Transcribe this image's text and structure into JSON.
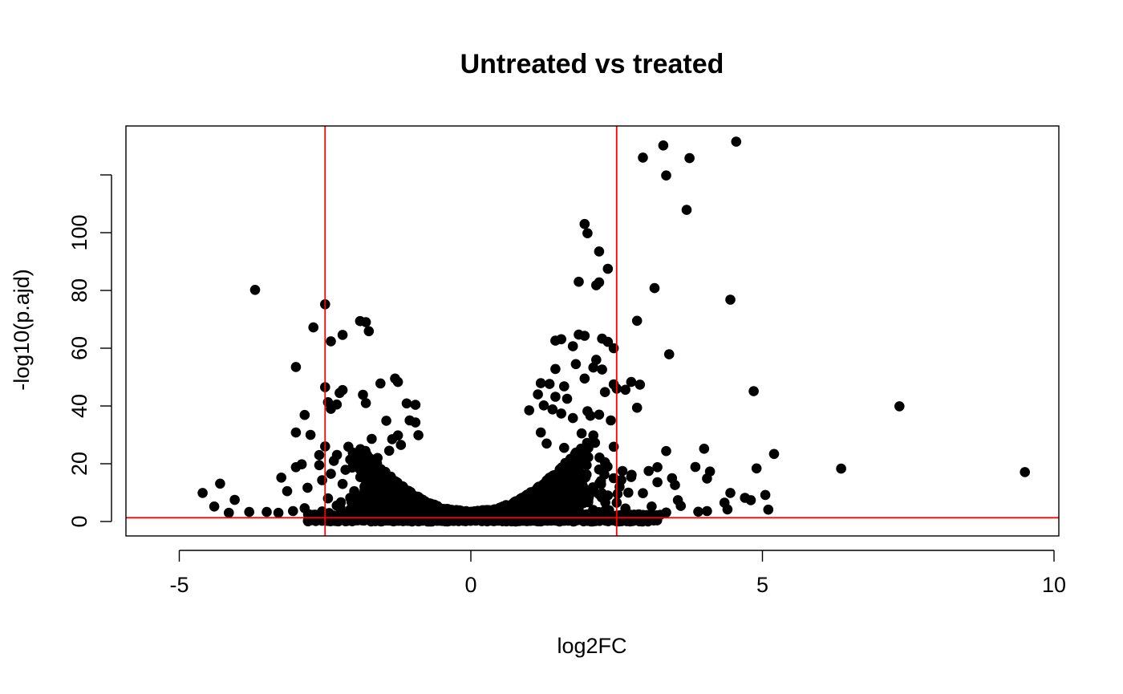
{
  "chart_data": {
    "type": "scatter",
    "title": "Untreated vs treated",
    "xlabel": "log2FC",
    "ylabel": "-log10(p.ajd)",
    "xlim": [
      -6.1,
      10.1
    ],
    "ylim": [
      -5,
      136
    ],
    "x_ticks": [
      -5,
      0,
      5,
      10
    ],
    "y_ticks": [
      0,
      20,
      40,
      60,
      80,
      100
    ],
    "y_tick_marks": [
      0,
      20,
      40,
      60,
      80,
      100,
      120
    ],
    "x_tick_labels": [
      "-5",
      "0",
      "5",
      "10"
    ],
    "y_tick_labels": [
      "0",
      "20",
      "40",
      "60",
      "80",
      "100"
    ],
    "grid": false,
    "legend": "none",
    "point_color": "#000000",
    "reference_lines": {
      "color": "#ff0000",
      "vertical_x": [
        -2.5,
        2.5
      ],
      "horizontal_y": [
        1.3
      ]
    },
    "points": [
      [
        4.55,
        131.5
      ],
      [
        3.3,
        130.2
      ],
      [
        2.95,
        126.0
      ],
      [
        3.75,
        125.8
      ],
      [
        3.35,
        119.8
      ],
      [
        3.7,
        107.9
      ],
      [
        1.95,
        103.0
      ],
      [
        2.0,
        99.8
      ],
      [
        2.2,
        93.5
      ],
      [
        2.35,
        87.5
      ],
      [
        1.85,
        83.0
      ],
      [
        2.15,
        81.8
      ],
      [
        2.2,
        82.8
      ],
      [
        3.15,
        80.8
      ],
      [
        -3.7,
        80.2
      ],
      [
        4.45,
        76.8
      ],
      [
        -2.5,
        75.2
      ],
      [
        2.85,
        69.5
      ],
      [
        -1.9,
        69.4
      ],
      [
        -1.8,
        69.0
      ],
      [
        -2.7,
        67.2
      ],
      [
        -1.75,
        65.9
      ],
      [
        -2.2,
        64.6
      ],
      [
        -2.4,
        62.4
      ],
      [
        1.85,
        64.7
      ],
      [
        1.95,
        64.3
      ],
      [
        1.55,
        63.1
      ],
      [
        1.45,
        62.6
      ],
      [
        2.25,
        63.3
      ],
      [
        2.35,
        62.2
      ],
      [
        1.75,
        60.7
      ],
      [
        2.45,
        60.0
      ],
      [
        3.4,
        57.9
      ],
      [
        2.15,
        56.0
      ],
      [
        -3.0,
        53.5
      ],
      [
        1.8,
        54.5
      ],
      [
        2.1,
        53.3
      ],
      [
        1.45,
        52.8
      ],
      [
        2.25,
        52.6
      ],
      [
        1.95,
        49.5
      ],
      [
        -1.3,
        49.5
      ],
      [
        -1.25,
        48.3
      ],
      [
        -1.55,
        47.8
      ],
      [
        2.45,
        47.5
      ],
      [
        2.75,
        48.3
      ],
      [
        2.9,
        47.4
      ],
      [
        1.2,
        47.9
      ],
      [
        1.35,
        47.6
      ],
      [
        1.6,
        46.8
      ],
      [
        2.5,
        46.0
      ],
      [
        2.65,
        45.6
      ],
      [
        4.85,
        45.1
      ],
      [
        -2.5,
        46.5
      ],
      [
        -2.2,
        45.5
      ],
      [
        -2.25,
        44.5
      ],
      [
        -1.85,
        43.9
      ],
      [
        1.15,
        44.0
      ],
      [
        1.45,
        43.2
      ],
      [
        1.65,
        42.5
      ],
      [
        2.3,
        44.8
      ],
      [
        -1.8,
        41.0
      ],
      [
        -2.3,
        40.5
      ],
      [
        -2.45,
        41.3
      ],
      [
        -1.1,
        40.9
      ],
      [
        -0.95,
        40.4
      ],
      [
        7.35,
        39.9
      ],
      [
        2.85,
        39.4
      ],
      [
        -2.4,
        39.0
      ],
      [
        1.25,
        40.2
      ],
      [
        1.0,
        38.5
      ],
      [
        1.4,
        38.8
      ],
      [
        1.55,
        37.4
      ],
      [
        2.0,
        38.2
      ],
      [
        2.05,
        36.6
      ],
      [
        2.2,
        37.0
      ],
      [
        -2.85,
        36.9
      ],
      [
        1.75,
        35.8
      ],
      [
        2.4,
        35.0
      ],
      [
        -1.45,
        34.9
      ],
      [
        -1.05,
        35.0
      ],
      [
        -0.95,
        34.3
      ],
      [
        -3.0,
        30.8
      ],
      [
        -2.75,
        30.0
      ],
      [
        1.9,
        30.5
      ],
      [
        2.1,
        29.8
      ],
      [
        1.2,
        30.8
      ],
      [
        -0.9,
        29.9
      ],
      [
        -1.25,
        29.8
      ],
      [
        -1.35,
        28.5
      ],
      [
        -1.7,
        28.6
      ],
      [
        4.0,
        25.2
      ],
      [
        -2.5,
        26.0
      ],
      [
        -2.1,
        25.9
      ],
      [
        2.45,
        25.9
      ],
      [
        3.35,
        24.4
      ],
      [
        5.2,
        23.4
      ],
      [
        -3.25,
        15.2
      ],
      [
        -2.9,
        19.8
      ],
      [
        -3.0,
        18.8
      ],
      [
        -2.6,
        19.5
      ],
      [
        -2.35,
        21.0
      ],
      [
        -2.15,
        17.9
      ],
      [
        -2.55,
        14.3
      ],
      [
        -2.8,
        11.7
      ],
      [
        -3.15,
        10.5
      ],
      [
        -4.6,
        9.9
      ],
      [
        -4.3,
        13.1
      ],
      [
        -4.05,
        7.5
      ],
      [
        -4.4,
        5.2
      ],
      [
        -4.15,
        3.0
      ],
      [
        -3.8,
        3.3
      ],
      [
        -3.5,
        3.3
      ],
      [
        -3.3,
        3.0
      ],
      [
        -3.05,
        3.6
      ],
      [
        -2.85,
        4.6
      ],
      [
        -2.7,
        1.9
      ],
      [
        3.05,
        17.5
      ],
      [
        3.2,
        18.8
      ],
      [
        2.75,
        15.4
      ],
      [
        3.45,
        15.0
      ],
      [
        3.85,
        18.9
      ],
      [
        4.1,
        17.3
      ],
      [
        4.05,
        14.9
      ],
      [
        3.5,
        12.6
      ],
      [
        3.2,
        13.6
      ],
      [
        2.95,
        9.8
      ],
      [
        3.55,
        7.4
      ],
      [
        3.6,
        5.4
      ],
      [
        3.1,
        5.2
      ],
      [
        3.35,
        3.1
      ],
      [
        3.9,
        3.4
      ],
      [
        4.05,
        3.6
      ],
      [
        4.4,
        4.2
      ],
      [
        4.35,
        6.5
      ],
      [
        4.45,
        9.9
      ],
      [
        4.7,
        8.2
      ],
      [
        4.8,
        7.4
      ],
      [
        4.9,
        18.4
      ],
      [
        5.05,
        9.2
      ],
      [
        5.1,
        4.1
      ],
      [
        6.35,
        18.3
      ],
      [
        9.5,
        17.1
      ],
      [
        3.0,
        1.7
      ],
      [
        2.8,
        2.4
      ],
      [
        3.25,
        2.3
      ],
      [
        -1.6,
        22.0
      ],
      [
        -1.4,
        24.5
      ],
      [
        -1.2,
        26.5
      ],
      [
        1.3,
        27.0
      ],
      [
        1.6,
        25.5
      ],
      [
        1.8,
        23.8
      ],
      [
        2.0,
        22.5
      ],
      [
        2.3,
        20.5
      ],
      [
        2.2,
        18.0
      ],
      [
        -2.0,
        20.5
      ],
      [
        -1.9,
        18.0
      ],
      [
        -1.75,
        15.5
      ],
      [
        -2.2,
        13.0
      ],
      [
        -2.0,
        10.5
      ],
      [
        -1.8,
        8.0
      ],
      [
        1.9,
        14.0
      ],
      [
        2.1,
        11.5
      ],
      [
        2.35,
        9.0
      ],
      [
        2.5,
        6.5
      ],
      [
        2.65,
        4.5
      ],
      [
        -2.45,
        8.0
      ],
      [
        -2.3,
        5.5
      ],
      [
        -2.55,
        3.5
      ],
      [
        -2.25,
        2.5
      ],
      [
        2.55,
        12.0
      ],
      [
        2.7,
        10.0
      ],
      [
        2.45,
        15.0
      ],
      [
        2.6,
        17.5
      ],
      [
        -2.6,
        23.0
      ],
      [
        -2.4,
        16.5
      ]
    ],
    "dense_bands": [
      {
        "x_center": -1.1,
        "x_spread": 0.95,
        "y_max": 26
      },
      {
        "x_center": 1.15,
        "x_spread": 1.0,
        "y_max": 27
      }
    ]
  }
}
